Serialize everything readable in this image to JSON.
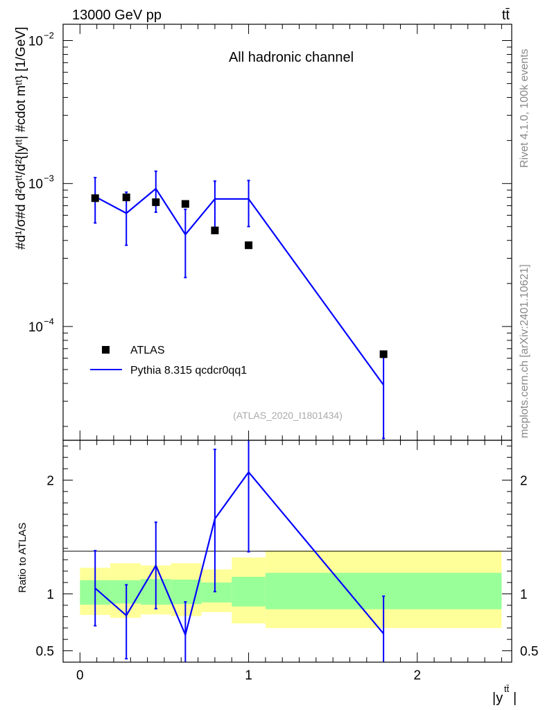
{
  "header": {
    "energy_label": "13000 GeV pp",
    "process_label": "tt̄"
  },
  "side_labels": {
    "rivet": "Rivet 4.1.0,  100k events",
    "mcplots": "mcplots.cern.ch [arXiv:2401.10621]"
  },
  "chart_data": [
    {
      "type": "line",
      "panel": "main",
      "title": "All hadronic channel",
      "watermark": "(ATLAS_2020_I1801434)",
      "ylabel": "#d\\frac{1}{\\sigma}#d\\frac{d^{2}\\sigma^{tt}}{d^{2}{|y^{tt}| #cdot m^{tt}}} [1/GeV]",
      "ylabel_display": "#d¹/σ#d d²σᵗᵗ/d²{|yᵗᵗ| #cdot mᵗᵗ} [1/GeV]",
      "yscale": "log",
      "xlim": [
        -0.1,
        2.56
      ],
      "ylim": [
        1.6e-05,
        0.013
      ],
      "y_ticks": [
        {
          "value": 0.01,
          "label": "10",
          "exp": "−2"
        },
        {
          "value": 0.001,
          "label": "10",
          "exp": "−3"
        },
        {
          "value": 0.0001,
          "label": "10",
          "exp": "−4"
        }
      ],
      "legend": [
        {
          "label": "ATLAS",
          "kind": "marker"
        },
        {
          "label": "Pythia 8.315 qcdcr0qq1",
          "kind": "line"
        }
      ],
      "legend_position": "bottom-left",
      "series": [
        {
          "name": "ATLAS",
          "kind": "points",
          "color": "#000000",
          "x": [
            0.09,
            0.275,
            0.45,
            0.625,
            0.8,
            1.0,
            1.8
          ],
          "y": [
            0.00079,
            0.0008,
            0.00074,
            0.00072,
            0.00047,
            0.00037,
            6.4e-05
          ]
        },
        {
          "name": "Pythia 8.315 qcdcr0qq1",
          "kind": "line",
          "color": "#0000ff",
          "x": [
            0.09,
            0.275,
            0.45,
            0.625,
            0.8,
            1.0,
            1.8
          ],
          "y": [
            0.00081,
            0.00062,
            0.00092,
            0.00044,
            0.00078,
            0.00078,
            3.9e-05
          ],
          "err_low": [
            0.00053,
            0.00037,
            0.00063,
            0.00022,
            0.00048,
            0.0005,
            1.65e-05
          ],
          "err_high": [
            0.0011,
            0.00087,
            0.00122,
            0.00066,
            0.00104,
            0.00105,
            6.4e-05
          ]
        }
      ]
    },
    {
      "type": "line",
      "panel": "ratio",
      "ylabel": "Ratio to ATLAS",
      "xlabel": "|y",
      "xlabel_sup": "tt̄",
      "xlabel_end": "|",
      "xlim": [
        -0.1,
        2.56
      ],
      "ylim": [
        0.4,
        2.35
      ],
      "y_ticks": [
        {
          "value": 0.5,
          "label": "0.5"
        },
        {
          "value": 1,
          "label": "1"
        },
        {
          "value": 2,
          "label": "2"
        }
      ],
      "x_ticks": [
        {
          "value": 0,
          "label": "0"
        },
        {
          "value": 1,
          "label": "1"
        },
        {
          "value": 2,
          "label": "2"
        }
      ],
      "bands": [
        {
          "x0": 0.0,
          "x1": 0.18,
          "stat_lo": 0.905,
          "stat_hi": 1.12,
          "tot_lo": 0.815,
          "tot_hi": 1.23,
          "tot_hi2": 1.23
        },
        {
          "x0": 0.18,
          "x1": 0.36,
          "stat_lo": 0.915,
          "stat_hi": 1.12,
          "tot_lo": 0.79,
          "tot_hi": 1.27
        },
        {
          "x0": 0.36,
          "x1": 0.54,
          "stat_lo": 0.905,
          "stat_hi": 1.13,
          "tot_lo": 0.82,
          "tot_hi": 1.25
        },
        {
          "x0": 0.54,
          "x1": 0.72,
          "stat_lo": 0.91,
          "stat_hi": 1.125,
          "tot_lo": 0.805,
          "tot_hi": 1.27
        },
        {
          "x0": 0.72,
          "x1": 0.9,
          "stat_lo": 0.925,
          "stat_hi": 1.1,
          "tot_lo": 0.84,
          "tot_hi": 1.215
        },
        {
          "x0": 0.9,
          "x1": 1.1,
          "stat_lo": 0.89,
          "stat_hi": 1.15,
          "tot_lo": 0.74,
          "tot_hi": 1.32
        },
        {
          "x0": 1.1,
          "x1": 2.5,
          "stat_lo": 0.865,
          "stat_hi": 1.185,
          "tot_lo": 0.7,
          "tot_hi": 1.38
        }
      ],
      "series": [
        {
          "name": "Pythia 8.315 qcdcr0qq1 / ATLAS",
          "color": "#0000ff",
          "x": [
            0.09,
            0.275,
            0.45,
            0.625,
            0.8,
            1.0,
            1.8
          ],
          "y": [
            1.05,
            0.81,
            1.25,
            0.64,
            1.66,
            2.07,
            0.65
          ],
          "err_low": [
            0.72,
            0.43,
            0.87,
            0.31,
            1.02,
            1.37,
            0.24
          ],
          "err_high": [
            1.38,
            1.08,
            1.63,
            0.93,
            2.27,
            2.43,
            0.98
          ]
        }
      ]
    }
  ]
}
